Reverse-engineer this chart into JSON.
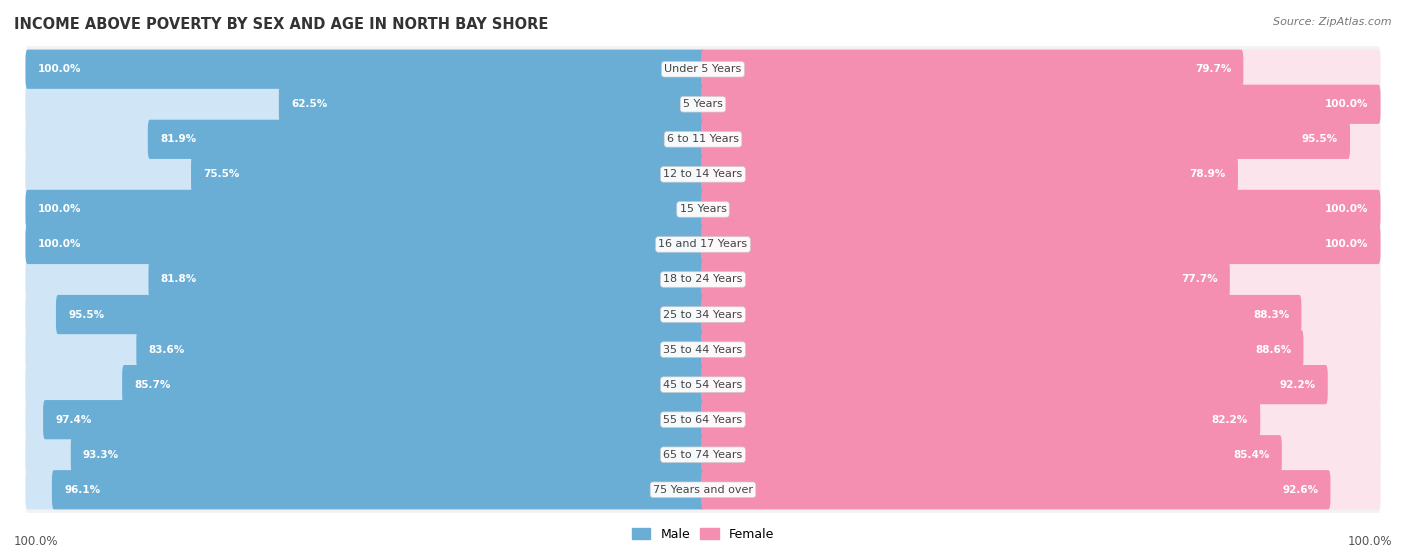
{
  "title": "INCOME ABOVE POVERTY BY SEX AND AGE IN NORTH BAY SHORE",
  "source": "Source: ZipAtlas.com",
  "categories": [
    "Under 5 Years",
    "5 Years",
    "6 to 11 Years",
    "12 to 14 Years",
    "15 Years",
    "16 and 17 Years",
    "18 to 24 Years",
    "25 to 34 Years",
    "35 to 44 Years",
    "45 to 54 Years",
    "55 to 64 Years",
    "65 to 74 Years",
    "75 Years and over"
  ],
  "male": [
    100.0,
    62.5,
    81.9,
    75.5,
    100.0,
    100.0,
    81.8,
    95.5,
    83.6,
    85.7,
    97.4,
    93.3,
    96.1
  ],
  "female": [
    79.7,
    100.0,
    95.5,
    78.9,
    100.0,
    100.0,
    77.7,
    88.3,
    88.6,
    92.2,
    82.2,
    85.4,
    92.6
  ],
  "male_color": "#6aaed6",
  "female_color": "#f48fb1",
  "male_color_light": "#d0e5f5",
  "female_color_light": "#fce4ec",
  "row_colors": [
    "#f2f2f2",
    "#e8e8e8"
  ],
  "bg_color": "#ffffff",
  "label_color": "#555555",
  "center_label_color": "#444444",
  "value_label_color": "#ffffff",
  "xlabel_bottom_left": "100.0%",
  "xlabel_bottom_right": "100.0%"
}
